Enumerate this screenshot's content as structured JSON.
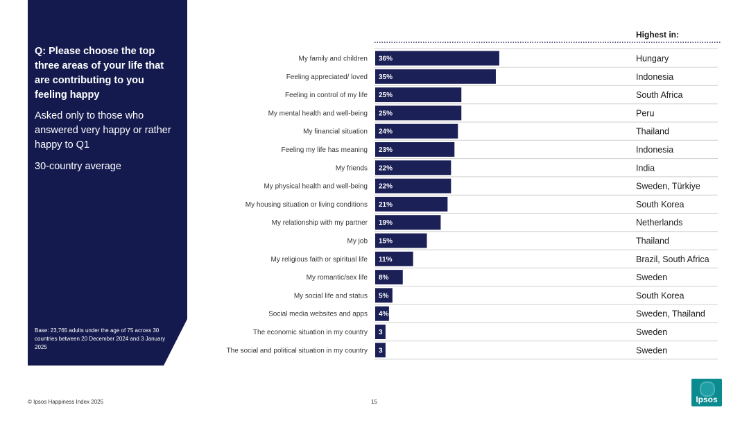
{
  "sidebar": {
    "question": "Q: Please choose the top three areas of your life that are contributing to you feeling happy",
    "subtext": "Asked only to those who answered very happy or rather happy to Q1",
    "average": "30-country average",
    "base": "Base: 23,765 adults under the age of 75 across 30 countries between 20 December 2024 and 3 January 2025"
  },
  "chart_data": {
    "type": "bar",
    "orientation": "horizontal",
    "unit": "%",
    "xlim": [
      0,
      100
    ],
    "highest_header": "Highest in:",
    "categories": [
      "My family and children",
      "Feeling appreciated/ loved",
      "Feeling in control of my life",
      "My mental health and well-being",
      "My financial situation",
      "Feeling my life has meaning",
      "My friends",
      "My physical health and well-being",
      "My housing situation or living conditions",
      "My relationship with my partner",
      "My job",
      "My religious faith or spiritual life",
      "My romantic/sex life",
      "My social life and status",
      "Social media websites and apps",
      "The economic situation in my country",
      "The social and political situation in my country"
    ],
    "values": [
      36,
      35,
      25,
      25,
      24,
      23,
      22,
      22,
      21,
      19,
      15,
      11,
      8,
      5,
      4,
      3,
      3
    ],
    "value_labels": [
      "36%",
      "35%",
      "25%",
      "25%",
      "24%",
      "23%",
      "22%",
      "22%",
      "21%",
      "19%",
      "15%",
      "11%",
      "8%",
      "5%",
      "4%",
      "3",
      "3"
    ],
    "highest_in": [
      "Hungary",
      "Indonesia",
      "South Africa",
      "Peru",
      "Thailand",
      "Indonesia",
      "India",
      "Sweden, Türkiye",
      "South Korea",
      "Netherlands",
      "Thailand",
      "Brazil, South Africa",
      "Sweden",
      "South Korea",
      "Sweden, Thailand",
      "Sweden",
      "Sweden"
    ]
  },
  "colors": {
    "navy": "#141a4e",
    "bar": "#1b2057",
    "teal": "#0b8a8f"
  },
  "footer": {
    "copyright": "© Ipsos Happiness Index 2025",
    "page": "15"
  },
  "logo": {
    "text": "Ipsos",
    "icon": "ipsos-logo-icon"
  }
}
